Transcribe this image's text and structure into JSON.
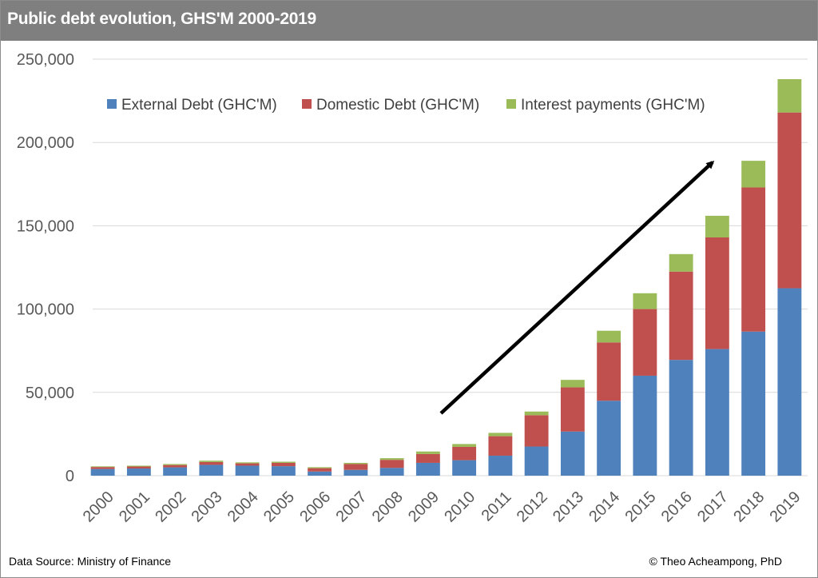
{
  "header": {
    "title": "Public debt evolution, GHS'M 2000-2019"
  },
  "footer": {
    "source": "Data Source: Ministry of Finance",
    "credit": "© Theo  Acheampong, PhD"
  },
  "chart_data": {
    "type": "bar",
    "stacked": true,
    "title": "Public debt evolution, GHS'M 2000-2019",
    "xlabel": "",
    "ylabel": "",
    "ylim": [
      0,
      250000
    ],
    "yticks": [
      0,
      50000,
      100000,
      150000,
      200000,
      250000
    ],
    "ytick_labels": [
      "0",
      "50,000",
      "100,000",
      "150,000",
      "200,000",
      "250,000"
    ],
    "grid": true,
    "legend_position": "top",
    "categories": [
      "2000",
      "2001",
      "2002",
      "2003",
      "2004",
      "2005",
      "2006",
      "2007",
      "2008",
      "2009",
      "2010",
      "2011",
      "2012",
      "2013",
      "2014",
      "2015",
      "2016",
      "2017",
      "2018",
      "2019"
    ],
    "series": [
      {
        "name": "External Debt (GHC'M)",
        "color": "#4f81bd",
        "values": [
          4000,
          4300,
          5000,
          6500,
          6000,
          5700,
          2500,
          3500,
          4700,
          7700,
          9300,
          12000,
          17500,
          26500,
          45000,
          60000,
          69500,
          76000,
          86500,
          112500
        ]
      },
      {
        "name": "Domestic Debt (GHC'M)",
        "color": "#c0504d",
        "values": [
          1200,
          1200,
          1400,
          1700,
          1400,
          2000,
          2000,
          3500,
          4800,
          5300,
          8000,
          11700,
          18800,
          26500,
          35000,
          40000,
          53000,
          67000,
          86500,
          105500
        ]
      },
      {
        "name": "Interest payments (GHC'M)",
        "color": "#9bbb59",
        "values": [
          400,
          500,
          600,
          800,
          600,
          700,
          600,
          700,
          1000,
          1500,
          1700,
          2000,
          2200,
          4500,
          7000,
          9500,
          10500,
          13000,
          16000,
          20000
        ]
      }
    ],
    "annotation": "upward trend arrow from 2009 to 2018"
  }
}
